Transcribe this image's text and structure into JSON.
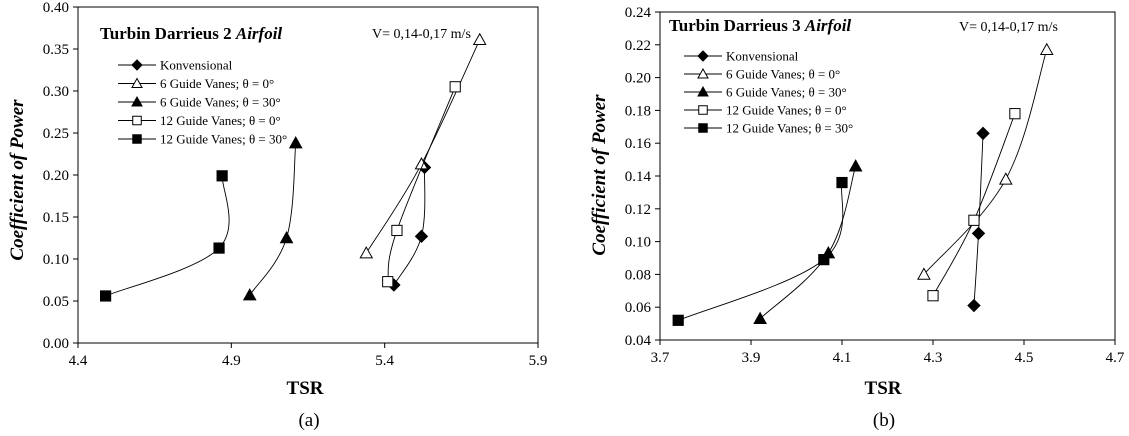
{
  "chart_data": [
    {
      "type": "line",
      "title": "Turbin Darrieus 2",
      "title_italic": "Airfoil",
      "annotation": "V= 0,14-0,17 m/s",
      "xlabel": "TSR",
      "ylabel": "Coefficient of Power",
      "caption": "(a)",
      "xlim": [
        4.4,
        5.9
      ],
      "ylim": [
        0,
        0.4
      ],
      "xticks": [
        "4.4",
        "4.9",
        "5.4",
        "5.9"
      ],
      "yticks": [
        "0.00",
        "0.05",
        "0.10",
        "0.15",
        "0.20",
        "0.25",
        "0.30",
        "0.35",
        "0.40"
      ],
      "legend_position": "top-left",
      "series": [
        {
          "name": "Konvensional",
          "marker": "diamond-filled",
          "x": [
            5.43,
            5.52,
            5.53
          ],
          "y": [
            0.069,
            0.127,
            0.209
          ]
        },
        {
          "name": "6 Guide Vanes; θ = 0°",
          "marker": "triangle-open",
          "x": [
            5.34,
            5.52,
            5.71
          ],
          "y": [
            0.107,
            0.213,
            0.361
          ]
        },
        {
          "name": "6 Guide Vanes; θ = 30°",
          "marker": "triangle-filled",
          "x": [
            4.96,
            5.08,
            5.11
          ],
          "y": [
            0.057,
            0.125,
            0.238
          ]
        },
        {
          "name": "12 Guide Vanes; θ = 0°",
          "marker": "square-open",
          "x": [
            5.41,
            5.44,
            5.63
          ],
          "y": [
            0.073,
            0.134,
            0.305
          ]
        },
        {
          "name": "12 Guide Vanes; θ = 30°",
          "marker": "square-filled",
          "x": [
            4.49,
            4.86,
            4.87
          ],
          "y": [
            0.056,
            0.113,
            0.199
          ]
        }
      ]
    },
    {
      "type": "line",
      "title": "Turbin Darrieus 3",
      "title_italic": "Airfoil",
      "annotation": "V= 0,14-0,17 m/s",
      "xlabel": "TSR",
      "ylabel": "Coefficient of Power",
      "caption": "(b)",
      "xlim": [
        3.7,
        4.7
      ],
      "ylim": [
        0.04,
        0.24
      ],
      "xticks": [
        "3.7",
        "3.9",
        "4.1",
        "4.3",
        "4.5",
        "4.7"
      ],
      "yticks": [
        "0.04",
        "0.06",
        "0.08",
        "0.10",
        "0.12",
        "0.14",
        "0.16",
        "0.18",
        "0.20",
        "0.22",
        "0.24"
      ],
      "legend_position": "top-left",
      "series": [
        {
          "name": "Konvensional",
          "marker": "diamond-filled",
          "x": [
            4.39,
            4.4,
            4.41
          ],
          "y": [
            0.061,
            0.105,
            0.166
          ]
        },
        {
          "name": "6 Guide Vanes; θ = 0°",
          "marker": "triangle-open",
          "x": [
            4.28,
            4.46,
            4.55
          ],
          "y": [
            0.08,
            0.138,
            0.217
          ]
        },
        {
          "name": "6 Guide Vanes; θ = 30°",
          "marker": "triangle-filled",
          "x": [
            3.92,
            4.07,
            4.13
          ],
          "y": [
            0.053,
            0.093,
            0.146
          ]
        },
        {
          "name": "12 Guide Vanes; θ = 0°",
          "marker": "square-open",
          "x": [
            4.3,
            4.39,
            4.48
          ],
          "y": [
            0.067,
            0.113,
            0.178
          ]
        },
        {
          "name": "12 Guide Vanes; θ = 30°",
          "marker": "square-filled",
          "x": [
            3.74,
            4.06,
            4.1
          ],
          "y": [
            0.052,
            0.089,
            0.136
          ]
        }
      ]
    }
  ]
}
